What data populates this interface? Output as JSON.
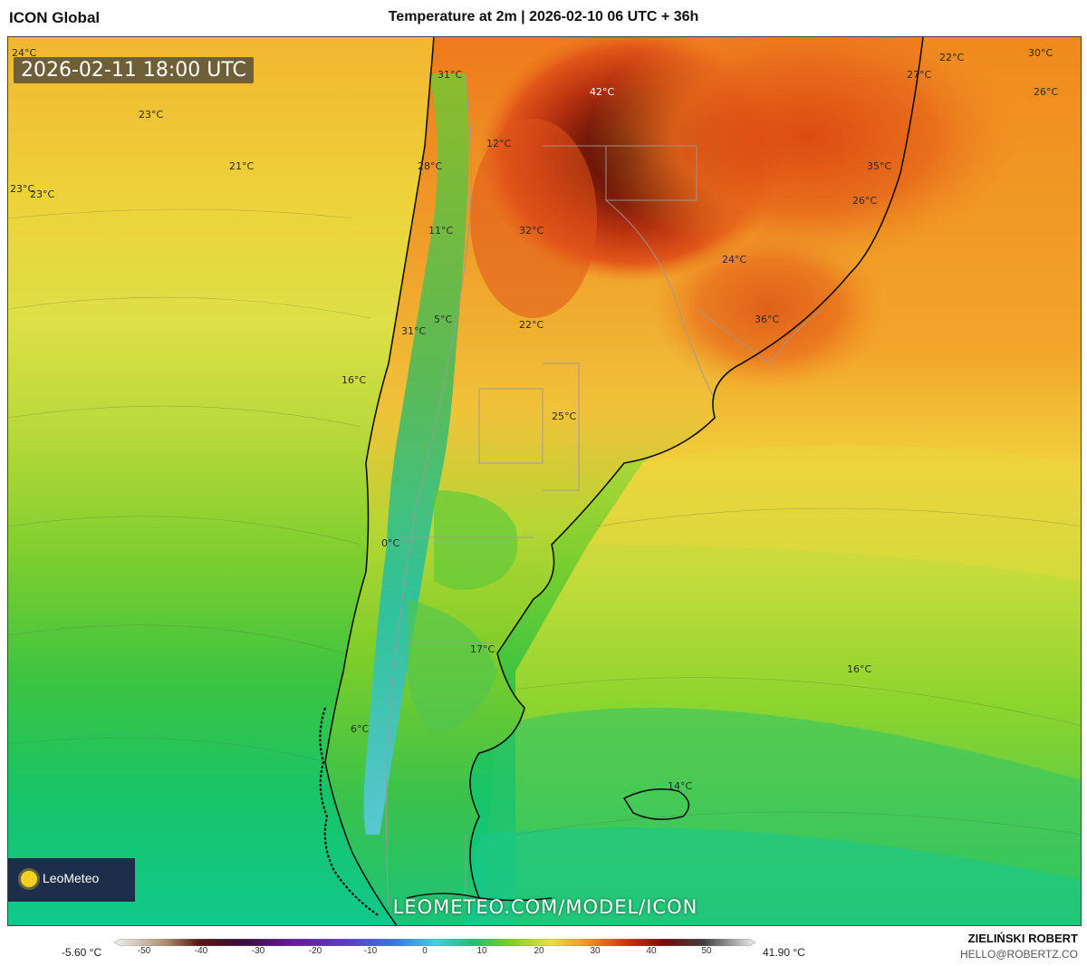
{
  "header": {
    "model_name": "ICON Global",
    "map_title": "Temperature at 2m | 2026-02-10 06 UTC + 36h"
  },
  "map": {
    "valid_time": "2026-02-11 18:00 UTC",
    "labels": [
      {
        "text": "24°C"
      },
      {
        "text": "31°C"
      },
      {
        "text": "42°C"
      },
      {
        "text": "22°C"
      },
      {
        "text": "30°C"
      },
      {
        "text": "27°C"
      },
      {
        "text": "26°C"
      },
      {
        "text": "23°C"
      },
      {
        "text": "12°C"
      },
      {
        "text": "21°C"
      },
      {
        "text": "28°C"
      },
      {
        "text": "35°C"
      },
      {
        "text": "23°C"
      },
      {
        "text": "23°C"
      },
      {
        "text": "26°C"
      },
      {
        "text": "11°C"
      },
      {
        "text": "32°C"
      },
      {
        "text": "24°C"
      },
      {
        "text": "5°C"
      },
      {
        "text": "22°C"
      },
      {
        "text": "36°C"
      },
      {
        "text": "31°C"
      },
      {
        "text": "16°C"
      },
      {
        "text": "25°C"
      },
      {
        "text": "0°C"
      },
      {
        "text": "17°C"
      },
      {
        "text": "16°C"
      },
      {
        "text": "6°C"
      },
      {
        "text": "14°C"
      }
    ],
    "logo_text": "LeoMeteo",
    "watermark_url": "LEOMETEO.COM/MODEL/ICON"
  },
  "legend": {
    "min_label": "-5.60 °C",
    "max_label": "41.90 °C",
    "ticks": [
      "-50",
      "-40",
      "-30",
      "-20",
      "-10",
      "0",
      "10",
      "20",
      "30",
      "40",
      "50"
    ]
  },
  "credits": {
    "author": "ZIELIŃSKI ROBERT",
    "contact": "HELLO@ROBERTZ.CO"
  }
}
